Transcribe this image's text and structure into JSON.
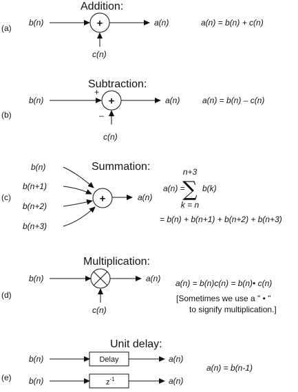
{
  "addition": {
    "tag": "(a)",
    "title": "Addition:",
    "in1": "b(n)",
    "in2": "c(n)",
    "out": "a(n)",
    "op": "+",
    "equation": "a(n) = b(n) + c(n)"
  },
  "subtraction": {
    "tag": "(b)",
    "title": "Subtraction:",
    "in1": "b(n)",
    "in2": "c(n)",
    "out": "a(n)",
    "op": "+",
    "sign_plus": "+",
    "sign_minus": "–",
    "equation": "a(n) = b(n) – c(n)"
  },
  "summation": {
    "tag": "(c)",
    "title": "Summation:",
    "inputs": [
      "b(n)",
      "b(n+1)",
      "b(n+2)",
      "b(n+3)"
    ],
    "out": "a(n)",
    "op": "+",
    "eq_lhs": "a(n) =",
    "sigma": "∑",
    "sigma_upper": "n+3",
    "sigma_lower": "k = n",
    "sigma_term": "b(k)",
    "eq_expanded": "=  b(n) + b(n+1) + b(n+2) + b(n+3)"
  },
  "multiplication": {
    "tag": "(d)",
    "title": "Multiplication:",
    "in1": "b(n)",
    "in2": "c(n)",
    "out": "a(n)",
    "equation": "a(n) = b(n)c(n) = b(n)• c(n)",
    "note_line1": "[Sometimes we use a \" • \"",
    "note_line2": "to signify multiplication.]"
  },
  "unit_delay": {
    "tag": "(e)",
    "title": "Unit delay:",
    "in": "b(n)",
    "out": "a(n)",
    "box1": "Delay",
    "box2": "z",
    "box2_sup": "-1",
    "equation": "a(n) = b(n-1)"
  }
}
